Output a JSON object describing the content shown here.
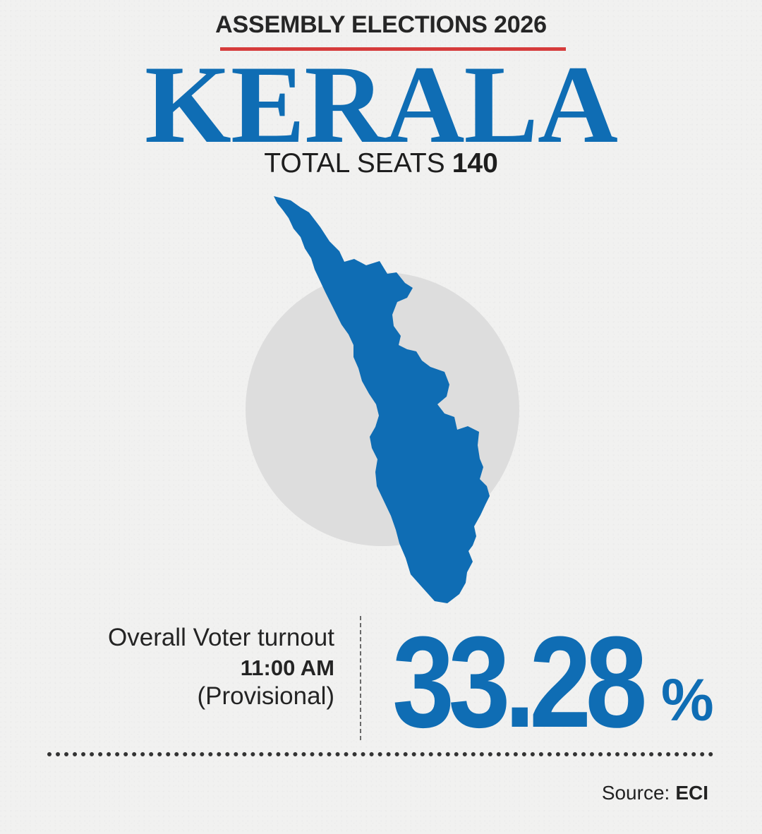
{
  "header": {
    "kicker": "ASSEMBLY ELECTIONS 2026",
    "state": "KERALA",
    "seats_label": "TOTAL SEATS",
    "seats_value": "140"
  },
  "turnout": {
    "label": "Overall Voter turnout",
    "time": "11:00 AM",
    "note": "(Provisional)",
    "value": "33.28",
    "unit": "%"
  },
  "footer": {
    "source_label": "Source:",
    "source_value": "ECI"
  },
  "colors": {
    "accent_blue": "#0F6DB4",
    "rule_red": "#D63C3C",
    "circle_gray": "#DDDDDD",
    "text_dark": "#222222",
    "background": "#F1F1F0"
  },
  "icons": {
    "map": "kerala-map-icon"
  }
}
